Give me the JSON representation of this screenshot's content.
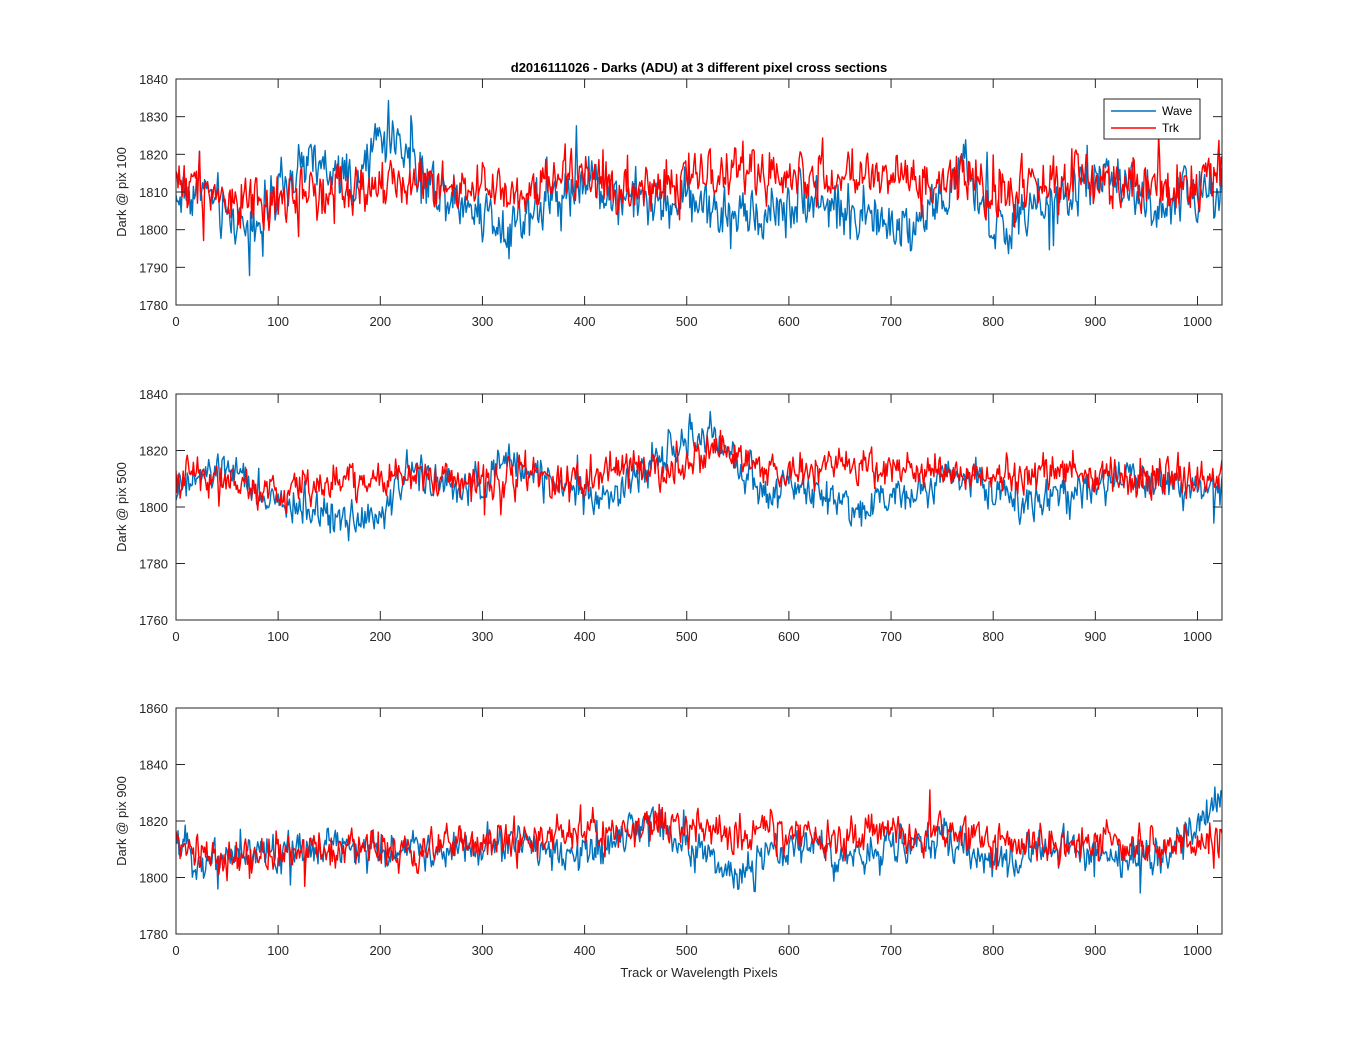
{
  "figure": {
    "title": "d2016111026 - Darks (ADU) at 3 different pixel cross sections",
    "xlabel": "Track or Wavelength Pixels"
  },
  "legend": {
    "placement": "top-right of first panel",
    "entries": [
      {
        "name": "Wave",
        "color": "#0072BD"
      },
      {
        "name": "Trk",
        "color": "#FF0000"
      }
    ]
  },
  "chart_data": [
    {
      "type": "line",
      "ylabel": "Dark @ pix 100",
      "xlim": [
        0,
        1024
      ],
      "ylim": [
        1780,
        1840
      ],
      "xticks": [
        0,
        100,
        200,
        300,
        400,
        500,
        600,
        700,
        800,
        900,
        1000
      ],
      "yticks": [
        1780,
        1790,
        1800,
        1810,
        1820,
        1830,
        1840
      ],
      "grid": false,
      "series": [
        {
          "name": "Wave",
          "color": "#0072BD",
          "x": [
            0,
            25,
            50,
            75,
            100,
            125,
            150,
            175,
            200,
            225,
            250,
            275,
            300,
            325,
            350,
            375,
            400,
            425,
            450,
            475,
            500,
            525,
            550,
            575,
            600,
            625,
            650,
            675,
            700,
            725,
            750,
            775,
            800,
            825,
            850,
            875,
            900,
            925,
            950,
            975,
            1000,
            1024
          ],
          "values": [
            1808,
            1812,
            1803,
            1802,
            1808,
            1818,
            1815,
            1810,
            1826,
            1822,
            1812,
            1808,
            1805,
            1801,
            1806,
            1809,
            1814,
            1810,
            1808,
            1806,
            1809,
            1806,
            1803,
            1804,
            1807,
            1810,
            1805,
            1804,
            1800,
            1803,
            1808,
            1816,
            1800,
            1802,
            1806,
            1808,
            1814,
            1812,
            1808,
            1806,
            1810,
            1812
          ]
        },
        {
          "name": "Trk",
          "color": "#FF0000",
          "x": [
            0,
            25,
            50,
            75,
            100,
            125,
            150,
            175,
            200,
            225,
            250,
            275,
            300,
            325,
            350,
            375,
            400,
            425,
            450,
            475,
            500,
            525,
            550,
            575,
            600,
            625,
            650,
            675,
            700,
            725,
            750,
            775,
            800,
            825,
            850,
            875,
            900,
            925,
            950,
            975,
            1000,
            1024
          ],
          "values": [
            1814,
            1812,
            1808,
            1806,
            1808,
            1810,
            1812,
            1810,
            1815,
            1812,
            1812,
            1810,
            1812,
            1808,
            1810,
            1813,
            1815,
            1812,
            1810,
            1813,
            1812,
            1815,
            1816,
            1814,
            1815,
            1815,
            1813,
            1813,
            1815,
            1812,
            1814,
            1815,
            1810,
            1810,
            1812,
            1813,
            1814,
            1812,
            1812,
            1810,
            1813,
            1818
          ]
        }
      ]
    },
    {
      "type": "line",
      "ylabel": "Dark @ pix 500",
      "xlim": [
        0,
        1024
      ],
      "ylim": [
        1760,
        1840
      ],
      "xticks": [
        0,
        100,
        200,
        300,
        400,
        500,
        600,
        700,
        800,
        900,
        1000
      ],
      "yticks": [
        1760,
        1780,
        1800,
        1820,
        1840
      ],
      "grid": false,
      "series": [
        {
          "name": "Wave",
          "color": "#0072BD",
          "x": [
            0,
            25,
            50,
            75,
            100,
            125,
            150,
            175,
            200,
            225,
            250,
            275,
            300,
            325,
            350,
            375,
            400,
            425,
            450,
            475,
            500,
            525,
            550,
            575,
            600,
            625,
            650,
            675,
            700,
            725,
            750,
            775,
            800,
            825,
            850,
            875,
            900,
            925,
            950,
            975,
            1000,
            1024
          ],
          "values": [
            1806,
            1810,
            1814,
            1806,
            1800,
            1800,
            1797,
            1798,
            1796,
            1812,
            1810,
            1806,
            1808,
            1816,
            1812,
            1808,
            1806,
            1804,
            1810,
            1818,
            1822,
            1826,
            1814,
            1806,
            1808,
            1806,
            1802,
            1800,
            1804,
            1806,
            1812,
            1812,
            1806,
            1802,
            1804,
            1806,
            1808,
            1810,
            1810,
            1808,
            1806,
            1806
          ]
        },
        {
          "name": "Trk",
          "color": "#FF0000",
          "x": [
            0,
            25,
            50,
            75,
            100,
            125,
            150,
            175,
            200,
            225,
            250,
            275,
            300,
            325,
            350,
            375,
            400,
            425,
            450,
            475,
            500,
            525,
            550,
            575,
            600,
            625,
            650,
            675,
            700,
            725,
            750,
            775,
            800,
            825,
            850,
            875,
            900,
            925,
            950,
            975,
            1000,
            1024
          ],
          "values": [
            1810,
            1812,
            1810,
            1806,
            1804,
            1808,
            1810,
            1808,
            1810,
            1812,
            1810,
            1810,
            1808,
            1812,
            1812,
            1810,
            1810,
            1812,
            1814,
            1814,
            1816,
            1818,
            1816,
            1814,
            1812,
            1814,
            1814,
            1816,
            1814,
            1812,
            1814,
            1812,
            1812,
            1810,
            1812,
            1812,
            1812,
            1810,
            1810,
            1810,
            1810,
            1812
          ]
        }
      ]
    },
    {
      "type": "line",
      "ylabel": "Dark @ pix 900",
      "xlim": [
        0,
        1024
      ],
      "ylim": [
        1780,
        1860
      ],
      "xticks": [
        0,
        100,
        200,
        300,
        400,
        500,
        600,
        700,
        800,
        900,
        1000
      ],
      "yticks": [
        1780,
        1800,
        1820,
        1840,
        1860
      ],
      "grid": false,
      "series": [
        {
          "name": "Wave",
          "color": "#0072BD",
          "x": [
            0,
            25,
            50,
            75,
            100,
            125,
            150,
            175,
            200,
            225,
            250,
            275,
            300,
            325,
            350,
            375,
            400,
            425,
            450,
            475,
            500,
            525,
            550,
            575,
            600,
            625,
            650,
            675,
            700,
            725,
            750,
            775,
            800,
            825,
            850,
            875,
            900,
            925,
            950,
            975,
            1000,
            1024
          ],
          "values": [
            1812,
            1806,
            1808,
            1810,
            1808,
            1810,
            1812,
            1810,
            1808,
            1810,
            1810,
            1810,
            1810,
            1812,
            1812,
            1810,
            1806,
            1812,
            1818,
            1820,
            1812,
            1806,
            1800,
            1806,
            1810,
            1812,
            1806,
            1808,
            1812,
            1812,
            1814,
            1810,
            1806,
            1808,
            1810,
            1810,
            1808,
            1806,
            1806,
            1810,
            1818,
            1828
          ]
        },
        {
          "name": "Trk",
          "color": "#FF0000",
          "x": [
            0,
            25,
            50,
            75,
            100,
            125,
            150,
            175,
            200,
            225,
            250,
            275,
            300,
            325,
            350,
            375,
            400,
            425,
            450,
            475,
            500,
            525,
            550,
            575,
            600,
            625,
            650,
            675,
            700,
            725,
            750,
            775,
            800,
            825,
            850,
            875,
            900,
            925,
            950,
            975,
            1000,
            1024
          ],
          "values": [
            1812,
            1808,
            1806,
            1808,
            1808,
            1810,
            1810,
            1812,
            1810,
            1810,
            1810,
            1812,
            1812,
            1814,
            1812,
            1816,
            1816,
            1814,
            1816,
            1820,
            1818,
            1816,
            1814,
            1816,
            1816,
            1814,
            1814,
            1816,
            1816,
            1814,
            1816,
            1816,
            1812,
            1812,
            1814,
            1812,
            1814,
            1812,
            1812,
            1812,
            1812,
            1814
          ]
        }
      ]
    }
  ]
}
